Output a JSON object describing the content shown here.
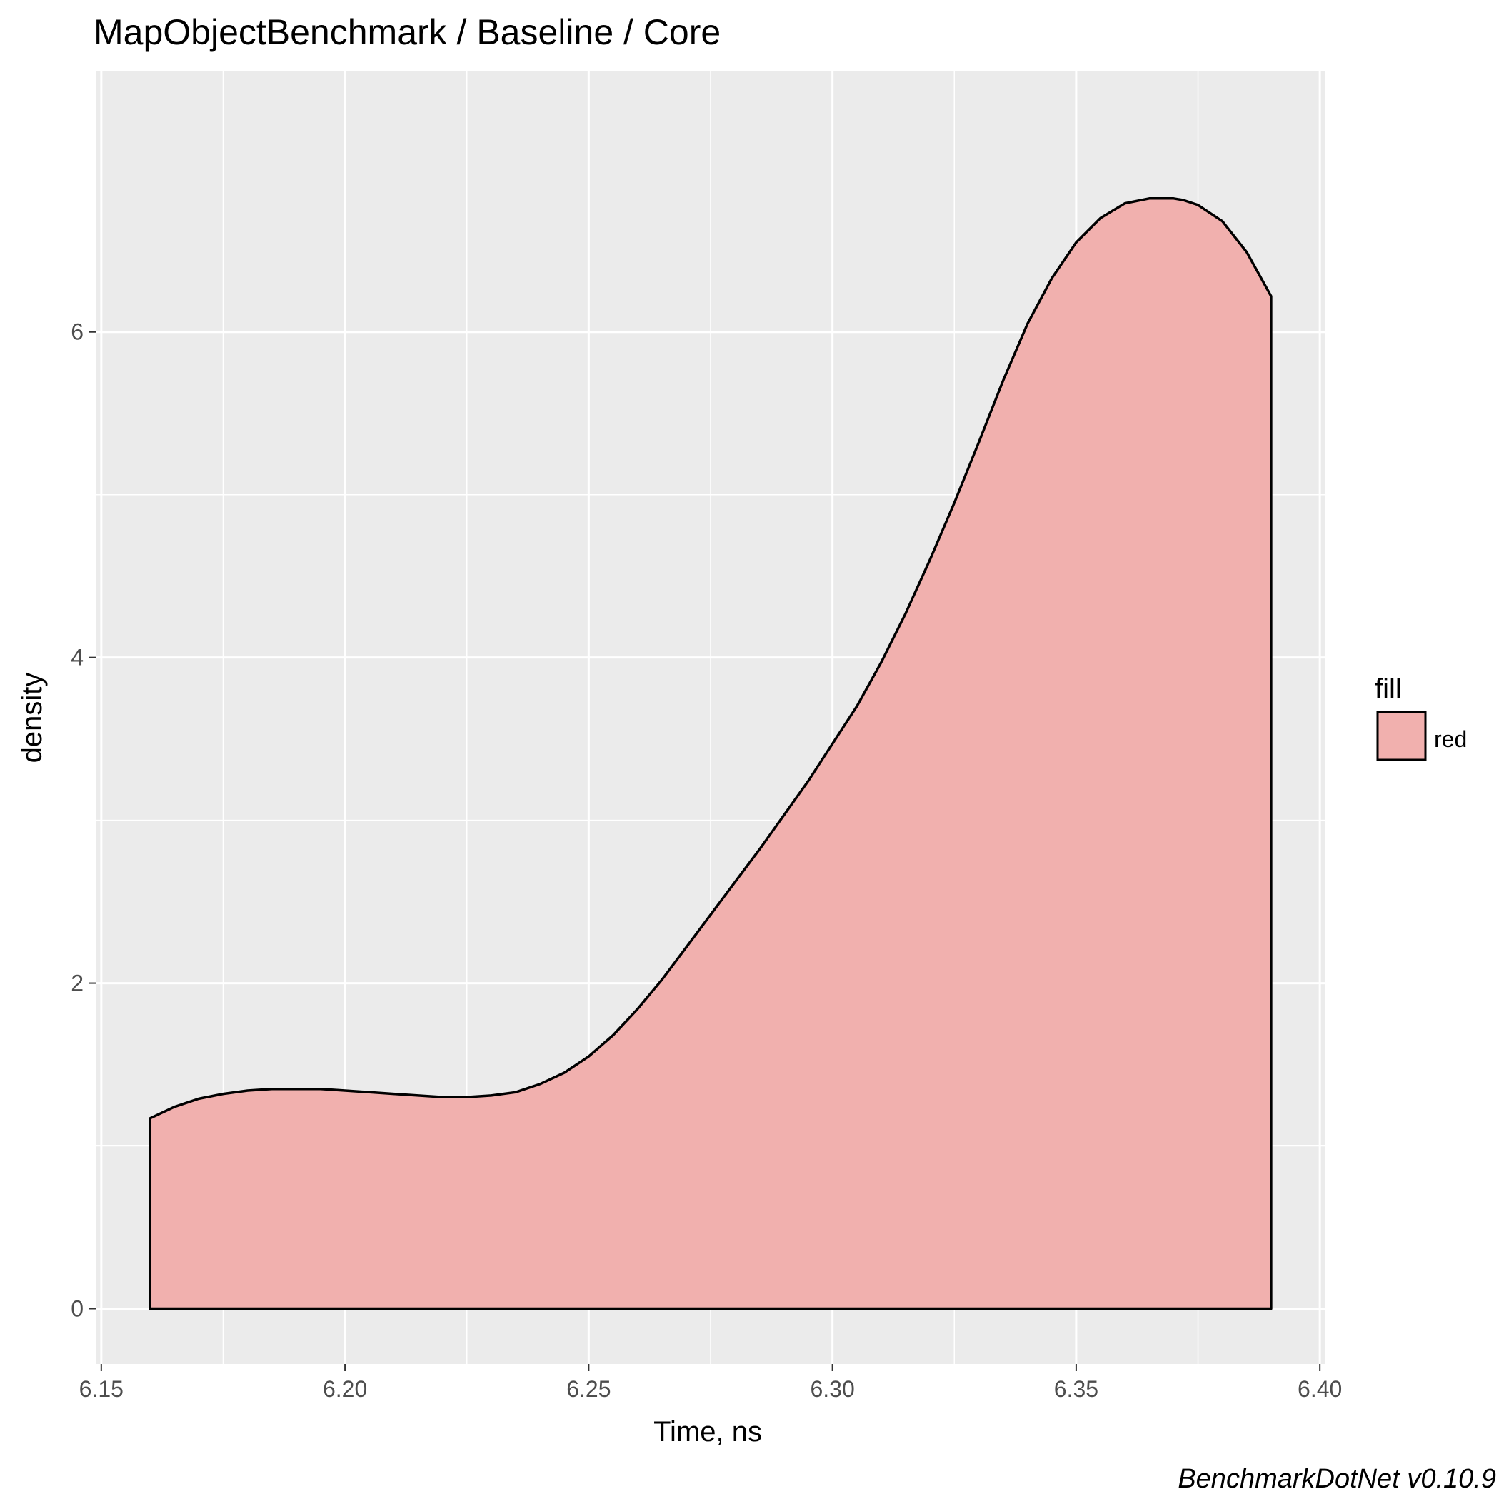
{
  "chart_data": {
    "type": "area",
    "title": "MapObjectBenchmark / Baseline / Core",
    "xlabel": "Time, ns",
    "ylabel": "density",
    "xlim": [
      6.149,
      6.401
    ],
    "ylim": [
      -0.34,
      7.6
    ],
    "x_ticks": [
      6.15,
      6.2,
      6.25,
      6.3,
      6.35,
      6.4
    ],
    "x_tick_labels": [
      "6.15",
      "6.20",
      "6.25",
      "6.30",
      "6.35",
      "6.40"
    ],
    "y_ticks": [
      0,
      2,
      4,
      6
    ],
    "y_tick_labels": [
      "0",
      "2",
      "4",
      "6"
    ],
    "grid": true,
    "series": [
      {
        "name": "red",
        "x": [
          6.16,
          6.165,
          6.17,
          6.175,
          6.18,
          6.185,
          6.19,
          6.195,
          6.2,
          6.205,
          6.21,
          6.215,
          6.22,
          6.225,
          6.23,
          6.235,
          6.24,
          6.245,
          6.25,
          6.255,
          6.26,
          6.265,
          6.27,
          6.275,
          6.28,
          6.285,
          6.29,
          6.295,
          6.3,
          6.305,
          6.31,
          6.315,
          6.32,
          6.325,
          6.33,
          6.335,
          6.34,
          6.345,
          6.35,
          6.355,
          6.36,
          6.365,
          6.37,
          6.372,
          6.375,
          6.38,
          6.385,
          6.39
        ],
        "y": [
          1.17,
          1.24,
          1.29,
          1.32,
          1.34,
          1.35,
          1.35,
          1.35,
          1.34,
          1.33,
          1.32,
          1.31,
          1.3,
          1.3,
          1.31,
          1.33,
          1.38,
          1.45,
          1.55,
          1.68,
          1.84,
          2.02,
          2.22,
          2.42,
          2.62,
          2.82,
          3.03,
          3.24,
          3.47,
          3.7,
          3.97,
          4.27,
          4.6,
          4.95,
          5.32,
          5.7,
          6.05,
          6.33,
          6.55,
          6.7,
          6.79,
          6.82,
          6.82,
          6.81,
          6.78,
          6.68,
          6.49,
          6.22
        ]
      }
    ],
    "fill_color": "#F1B0AE",
    "line_color": "#000000",
    "panel_background": "#EBEBEB",
    "legend": {
      "title": "fill",
      "placement": "right",
      "entries": [
        "red"
      ]
    },
    "caption": "BenchmarkDotNet v0.10.9"
  }
}
